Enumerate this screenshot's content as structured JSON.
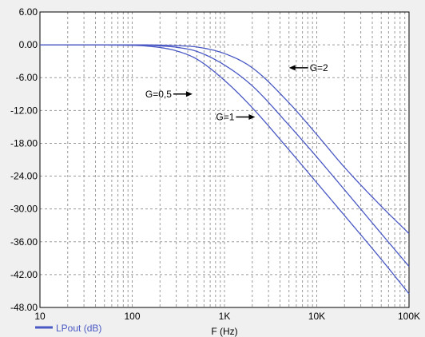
{
  "chart_data": {
    "type": "line",
    "xlabel": "F (Hz)",
    "ylabel": "",
    "x_scale": "log",
    "xlim": [
      10,
      100000
    ],
    "ylim": [
      -48,
      6
    ],
    "grid": true,
    "y_ticks": [
      "6.00",
      "0.00",
      "-6.00",
      "-12.00",
      "-18.00",
      "-24.00",
      "-30.00",
      "-36.00",
      "-42.00",
      "-48.00"
    ],
    "x_ticks": [
      "10",
      "100",
      "1K",
      "10K",
      "100K"
    ],
    "legend": {
      "label": "LPout (dB)",
      "placement": "bottom-left"
    },
    "line_color": "#4a59c4",
    "series": [
      {
        "x": [
          10,
          100,
          200,
          300,
          500,
          1000,
          2000,
          5000,
          10000,
          20000,
          50000,
          100000
        ],
        "values": [
          0.0,
          -0.1,
          -0.5,
          -1.1,
          -2.6,
          -6.5,
          -11.5,
          -19.2,
          -25.2,
          -31.2,
          -39.2,
          -45.5
        ]
      },
      {
        "x": [
          10,
          100,
          200,
          300,
          500,
          1000,
          2000,
          5000,
          10000,
          20000,
          50000,
          100000
        ],
        "values": [
          0.0,
          -0.05,
          -0.2,
          -0.45,
          -1.2,
          -3.7,
          -7.5,
          -14.7,
          -20.5,
          -26.5,
          -34.5,
          -40.5
        ]
      },
      {
        "x": [
          10,
          100,
          200,
          300,
          500,
          1000,
          2000,
          5000,
          10000,
          20000,
          50000,
          100000
        ],
        "values": [
          0.0,
          0.0,
          -0.05,
          -0.15,
          -0.4,
          -1.6,
          -4.2,
          -10.6,
          -16.4,
          -22.4,
          -29.5,
          -34.5
        ]
      }
    ],
    "annotations": [
      {
        "text": "G=0,5",
        "arrow": "right",
        "x": 450,
        "y": -9.0
      },
      {
        "text": "G=1",
        "arrow": "right",
        "x": 2150,
        "y": -13.2
      },
      {
        "text": "G=2",
        "arrow": "left",
        "x": 5000,
        "y": -4.2
      }
    ]
  }
}
